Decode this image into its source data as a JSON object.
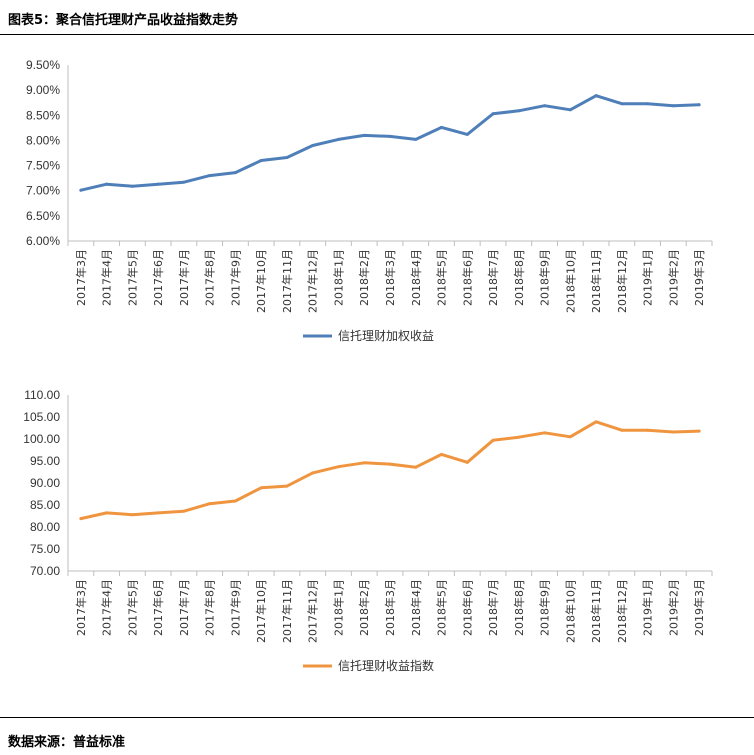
{
  "figure": {
    "title": "图表5：聚合信托理财产品收益指数走势",
    "source": "数据来源：普益标准"
  },
  "chart_data": [
    {
      "type": "line",
      "categories": [
        "2017年3月",
        "2017年4月",
        "2017年5月",
        "2017年6月",
        "2017年7月",
        "2017年8月",
        "2017年9月",
        "2017年10月",
        "2017年11月",
        "2017年12月",
        "2018年1月",
        "2018年2月",
        "2018年3月",
        "2018年4月",
        "2018年5月",
        "2018年6月",
        "2018年7月",
        "2018年8月",
        "2018年9月",
        "2018年10月",
        "2018年11月",
        "2018年12月",
        "2019年1月",
        "2019年2月",
        "2019年3月"
      ],
      "series": [
        {
          "name": "信托理财加权收益",
          "color": "#4f7fb8",
          "values": [
            7.01,
            7.13,
            7.09,
            7.13,
            7.17,
            7.3,
            7.36,
            7.6,
            7.66,
            7.9,
            8.02,
            8.1,
            8.08,
            8.02,
            8.26,
            8.12,
            8.53,
            8.59,
            8.69,
            8.61,
            8.89,
            8.73,
            8.73,
            8.69,
            8.71
          ]
        }
      ],
      "yticks": [
        "9.50%",
        "9.00%",
        "8.50%",
        "8.00%",
        "7.50%",
        "7.00%",
        "6.50%",
        "6.00%"
      ],
      "ylim": [
        6.0,
        9.5
      ],
      "legend": "bottom",
      "grid": false
    },
    {
      "type": "line",
      "categories": [
        "2017年3月",
        "2017年4月",
        "2017年5月",
        "2017年6月",
        "2017年7月",
        "2017年8月",
        "2017年9月",
        "2017年10月",
        "2017年11月",
        "2017年12月",
        "2018年1月",
        "2018年2月",
        "2018年3月",
        "2018年4月",
        "2018年5月",
        "2018年6月",
        "2018年7月",
        "2018年8月",
        "2018年9月",
        "2018年10月",
        "2018年11月",
        "2018年12月",
        "2019年1月",
        "2019年2月",
        "2019年3月"
      ],
      "series": [
        {
          "name": "信托理财收益指数",
          "color": "#f0953f",
          "values": [
            81.9,
            83.2,
            82.8,
            83.2,
            83.6,
            85.3,
            85.9,
            88.9,
            89.3,
            92.3,
            93.7,
            94.6,
            94.3,
            93.6,
            96.5,
            94.7,
            99.7,
            100.4,
            101.4,
            100.5,
            103.9,
            102.0,
            102.0,
            101.6,
            101.8
          ]
        }
      ],
      "yticks": [
        "110.00",
        "105.00",
        "100.00",
        "95.00",
        "90.00",
        "85.00",
        "80.00",
        "75.00",
        "70.00"
      ],
      "ylim": [
        70,
        110
      ],
      "legend": "bottom",
      "grid": false
    }
  ]
}
